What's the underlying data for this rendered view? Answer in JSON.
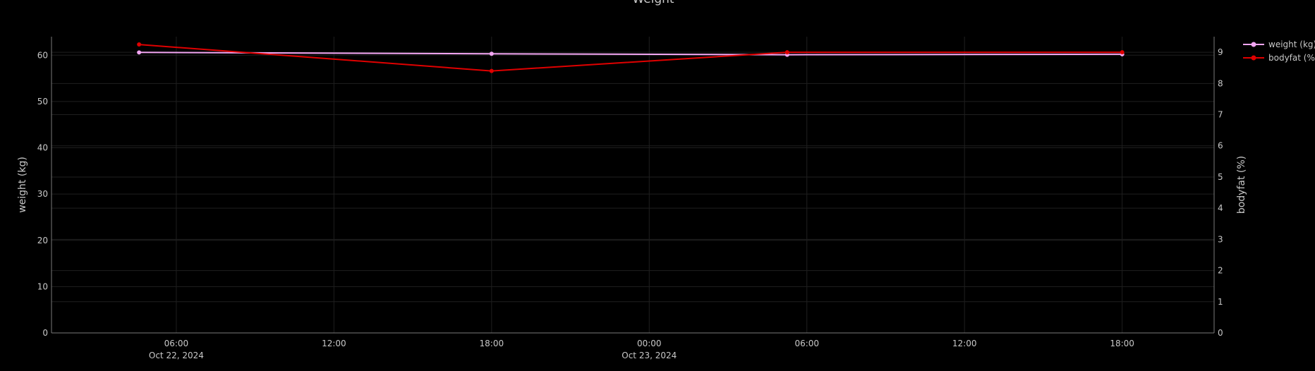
{
  "chart_data": {
    "type": "line",
    "title": "Weight",
    "x_axis": {
      "tick_values": [
        "2024-10-22 06:00",
        "2024-10-22 12:00",
        "2024-10-22 18:00",
        "2024-10-23 00:00",
        "2024-10-23 06:00",
        "2024-10-23 12:00",
        "2024-10-23 18:00"
      ],
      "tick_labels": [
        "06:00",
        "12:00",
        "18:00",
        "00:00",
        "06:00",
        "12:00",
        "18:00"
      ],
      "date_labels": [
        {
          "at": "2024-10-22 06:00",
          "text": "Oct 22, 2024"
        },
        {
          "at": "2024-10-23 00:00",
          "text": "Oct 23, 2024"
        }
      ],
      "range": [
        "2024-10-22 01:15",
        "2024-10-23 21:30"
      ]
    },
    "y_axis_left": {
      "label": "weight (kg)",
      "range": [
        0,
        64
      ],
      "ticks": [
        0,
        10,
        20,
        30,
        40,
        50,
        60
      ]
    },
    "y_axis_right": {
      "label": "bodyfat (%)",
      "range": [
        0,
        9.5
      ],
      "ticks": [
        0,
        1,
        2,
        3,
        4,
        5,
        6,
        7,
        8,
        9
      ]
    },
    "series": [
      {
        "name": "weight (kg)",
        "axis": "left",
        "color": "#f3a6f3",
        "x": [
          "2024-10-22 04:35",
          "2024-10-22 18:00",
          "2024-10-23 05:15",
          "2024-10-23 18:00"
        ],
        "y": [
          60.6,
          60.3,
          60.1,
          60.2
        ]
      },
      {
        "name": "bodyfat (%)",
        "axis": "right",
        "color": "#e00000",
        "x": [
          "2024-10-22 04:35",
          "2024-10-22 18:00",
          "2024-10-23 05:15",
          "2024-10-23 18:00"
        ],
        "y": [
          9.25,
          8.4,
          9.0,
          9.0
        ]
      }
    ],
    "legend": {
      "position": "top-right",
      "entries": [
        "weight (kg)",
        "bodyfat (%)"
      ]
    },
    "grid": true,
    "colors": {
      "background": "#000000",
      "grid": "#1f1f1f",
      "axis_line": "#7a7a7a",
      "text": "#c8c8c8"
    }
  }
}
